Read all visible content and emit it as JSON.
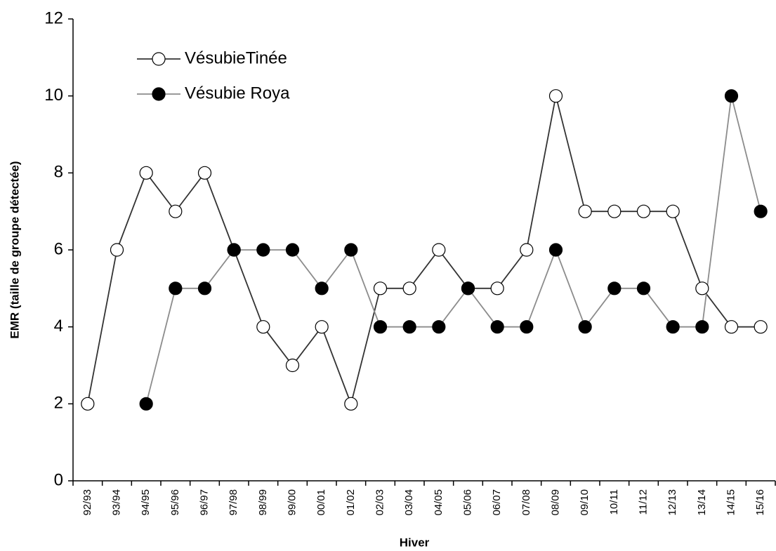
{
  "chart_data": {
    "type": "line",
    "xlabel": "Hiver",
    "ylabel": "EMR (taille de groupe détectée)",
    "categories": [
      "92/93",
      "93/94",
      "94/95",
      "95/96",
      "96/97",
      "97/98",
      "98/99",
      "99/00",
      "00/01",
      "01/02",
      "02/03",
      "03/04",
      "04/05",
      "05/06",
      "06/07",
      "07/08",
      "08/09",
      "09/10",
      "10/11",
      "11/12",
      "12/13",
      "13/14",
      "14/15",
      "15/16"
    ],
    "series": [
      {
        "name": "VésubieTinée",
        "color": "#333333",
        "marker_fill": "#ffffff",
        "values": [
          2,
          6,
          8,
          7,
          8,
          6,
          4,
          3,
          4,
          2,
          5,
          5,
          6,
          5,
          5,
          6,
          10,
          7,
          7,
          7,
          7,
          5,
          4,
          4
        ]
      },
      {
        "name": "Vésubie Roya",
        "color": "#8c8c8c",
        "marker_fill": "#000000",
        "values": [
          null,
          null,
          2,
          5,
          5,
          6,
          6,
          6,
          5,
          6,
          4,
          4,
          4,
          5,
          4,
          4,
          6,
          4,
          5,
          5,
          4,
          4,
          10,
          7
        ]
      }
    ],
    "ylim": [
      0,
      12
    ],
    "yticks": [
      0,
      2,
      4,
      6,
      8,
      10,
      12
    ],
    "grid": false,
    "legend": "upper left"
  }
}
